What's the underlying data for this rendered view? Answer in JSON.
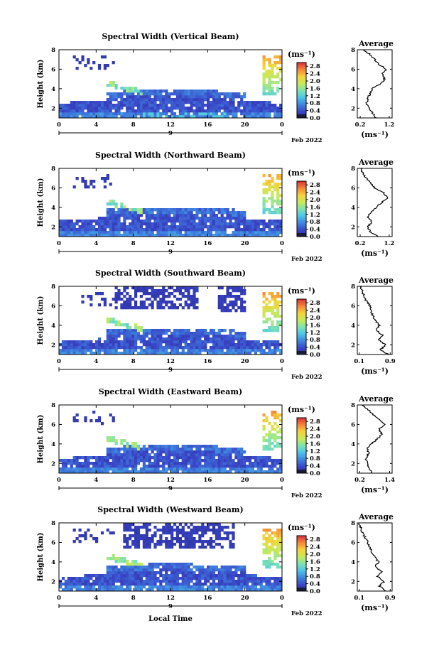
{
  "chart_data": [
    {
      "type": "heatmap",
      "title": "Spectral Width (Vertical Beam)",
      "ylabel": "Height (km)",
      "xticks": [
        "0",
        "4",
        "8",
        "12",
        "16",
        "20",
        "0"
      ],
      "yticks": [
        "2",
        "4",
        "6",
        "8"
      ],
      "date_marker": "9",
      "date_label": "Feb 2022",
      "xlim": [
        0,
        24
      ],
      "ylim": [
        1,
        8
      ],
      "colorbar": {
        "unit": "(ms⁻¹)",
        "ticks": [
          "0.0",
          "0.4",
          "0.8",
          "1.2",
          "1.6",
          "2.0",
          "2.4",
          "2.8"
        ],
        "range": [
          0,
          3
        ]
      },
      "echo": {
        "base_top": 3.6,
        "upper_patches": [],
        "pink_band": true
      },
      "average": {
        "title": "Average",
        "xlabel": "(ms⁻¹)",
        "xticks": [
          "0.2",
          "1.2"
        ],
        "xlim": [
          0.1,
          1.3
        ],
        "yticks": [
          "2",
          "4",
          "6",
          "8"
        ],
        "ylim": [
          1,
          8
        ],
        "height": [
          1.0,
          1.5,
          2.0,
          2.5,
          3.0,
          3.5,
          4.0,
          4.5,
          5.0,
          5.5,
          6.0,
          6.5,
          7.0,
          7.5,
          8.0
        ],
        "values": [
          0.75,
          0.62,
          0.5,
          0.42,
          0.45,
          0.55,
          0.6,
          0.92,
          1.05,
          0.95,
          1.1,
          0.85,
          0.7,
          0.55,
          0.3
        ]
      }
    },
    {
      "type": "heatmap",
      "title": "Spectral Width (Northward Beam)",
      "ylabel": "Height (km)",
      "xticks": [
        "0",
        "4",
        "8",
        "12",
        "16",
        "20",
        "0"
      ],
      "yticks": [
        "2",
        "4",
        "6",
        "8"
      ],
      "date_marker": "9",
      "date_label": "Feb 2022",
      "xlim": [
        0,
        24
      ],
      "ylim": [
        1,
        8
      ],
      "colorbar": {
        "unit": "(ms⁻¹)",
        "ticks": [
          "0.0",
          "0.4",
          "0.8",
          "1.2",
          "1.6",
          "2.0",
          "2.4",
          "2.8"
        ],
        "range": [
          0,
          3
        ]
      },
      "echo": {
        "base_top": 3.7,
        "upper_patches": [],
        "pink_band": false
      },
      "average": {
        "title": "Average",
        "xlabel": "(ms⁻¹)",
        "xticks": [
          "0.2",
          "1.2"
        ],
        "xlim": [
          0.1,
          1.3
        ],
        "yticks": [
          "2",
          "4",
          "6",
          "8"
        ],
        "ylim": [
          1,
          8
        ],
        "height": [
          1.0,
          1.5,
          2.0,
          2.5,
          3.0,
          3.5,
          4.0,
          4.5,
          5.0,
          5.5,
          6.0,
          6.5,
          7.0,
          7.5,
          8.0
        ],
        "values": [
          0.8,
          0.55,
          0.45,
          0.6,
          0.48,
          0.55,
          0.75,
          0.95,
          1.15,
          1.0,
          0.7,
          0.55,
          0.4,
          0.3,
          0.22
        ]
      }
    },
    {
      "type": "heatmap",
      "title": "Spectral Width (Southward Beam)",
      "ylabel": "Height (km)",
      "xticks": [
        "0",
        "4",
        "8",
        "12",
        "16",
        "20",
        "0"
      ],
      "yticks": [
        "2",
        "4",
        "6",
        "8"
      ],
      "date_marker": "9",
      "date_label": "Feb 2022",
      "xlim": [
        0,
        24
      ],
      "ylim": [
        1,
        8
      ],
      "colorbar": {
        "unit": "(ms⁻¹)",
        "ticks": [
          "0.0",
          "0.4",
          "0.8",
          "1.2",
          "1.6",
          "2.0",
          "2.4",
          "2.8"
        ],
        "range": [
          0,
          3
        ]
      },
      "echo": {
        "base_top": 3.4,
        "upper_patches": [
          [
            6,
            15,
            5.8,
            8
          ],
          [
            17,
            20,
            5.5,
            8
          ]
        ],
        "pink_band": false
      },
      "average": {
        "title": "Average",
        "xlabel": "(ms⁻¹)",
        "xticks": [
          "0.1",
          "0.9"
        ],
        "xlim": [
          0.05,
          0.95
        ],
        "yticks": [
          "2",
          "4",
          "6",
          "8"
        ],
        "ylim": [
          1,
          8
        ],
        "height": [
          1.0,
          1.5,
          2.0,
          2.5,
          3.0,
          3.5,
          4.0,
          4.5,
          5.0,
          5.5,
          6.0,
          6.5,
          7.0,
          7.5,
          8.0
        ],
        "values": [
          0.85,
          0.65,
          0.78,
          0.6,
          0.7,
          0.55,
          0.62,
          0.5,
          0.45,
          0.4,
          0.38,
          0.28,
          0.22,
          0.18,
          0.12
        ]
      }
    },
    {
      "type": "heatmap",
      "title": "Spectral Width (Eastward Beam)",
      "ylabel": "Height (km)",
      "xticks": [
        "0",
        "4",
        "8",
        "12",
        "16",
        "20",
        "0"
      ],
      "yticks": [
        "2",
        "4",
        "6",
        "8"
      ],
      "date_marker": "9",
      "date_label": "Feb 2022",
      "xlim": [
        0,
        24
      ],
      "ylim": [
        1,
        8
      ],
      "colorbar": {
        "unit": "(ms⁻¹)",
        "ticks": [
          "0.0",
          "0.4",
          "0.8",
          "1.2",
          "1.6",
          "2.0",
          "2.4",
          "2.8"
        ],
        "range": [
          0,
          3
        ]
      },
      "echo": {
        "base_top": 3.6,
        "upper_patches": [],
        "pink_band": false
      },
      "average": {
        "title": "Average",
        "xlabel": "(ms⁻¹)",
        "xticks": [
          "0.2",
          "1.4"
        ],
        "xlim": [
          0.1,
          1.5
        ],
        "yticks": [
          "2",
          "4",
          "6",
          "8"
        ],
        "ylim": [
          1,
          8
        ],
        "height": [
          1.0,
          1.5,
          2.0,
          2.5,
          3.0,
          3.5,
          4.0,
          4.5,
          5.0,
          5.5,
          6.0,
          6.5,
          7.0,
          7.5,
          8.0
        ],
        "values": [
          0.7,
          0.55,
          0.5,
          0.45,
          0.55,
          0.5,
          0.65,
          0.9,
          1.1,
          0.95,
          1.2,
          1.0,
          0.75,
          0.55,
          0.3
        ]
      }
    },
    {
      "type": "heatmap",
      "title": "Spectral Width (Westward Beam)",
      "ylabel": "Height (km)",
      "xlabel": "Local Time",
      "xticks": [
        "0",
        "4",
        "8",
        "12",
        "16",
        "20",
        "0"
      ],
      "yticks": [
        "2",
        "4",
        "6",
        "8"
      ],
      "date_marker": "9",
      "date_label": "Feb 2022",
      "xlim": [
        0,
        24
      ],
      "ylim": [
        1,
        8
      ],
      "colorbar": {
        "unit": "(ms⁻¹)",
        "ticks": [
          "0.0",
          "0.4",
          "0.8",
          "1.2",
          "1.6",
          "2.0",
          "2.4",
          "2.8"
        ],
        "range": [
          0,
          3
        ]
      },
      "echo": {
        "base_top": 3.5,
        "upper_patches": [
          [
            7,
            19,
            5.5,
            8
          ]
        ],
        "pink_band": false
      },
      "average": {
        "title": "Average",
        "xlabel": "(ms⁻¹)",
        "xticks": [
          "0.1",
          "0.9"
        ],
        "xlim": [
          0.05,
          0.95
        ],
        "yticks": [
          "2",
          "4",
          "6",
          "8"
        ],
        "ylim": [
          1,
          8
        ],
        "height": [
          1.0,
          1.5,
          2.0,
          2.5,
          3.0,
          3.5,
          4.0,
          4.5,
          5.0,
          5.5,
          6.0,
          6.5,
          7.0,
          7.5,
          8.0
        ],
        "values": [
          0.8,
          0.62,
          0.75,
          0.58,
          0.68,
          0.52,
          0.6,
          0.5,
          0.42,
          0.38,
          0.32,
          0.25,
          0.18,
          0.14,
          0.1
        ]
      }
    }
  ]
}
